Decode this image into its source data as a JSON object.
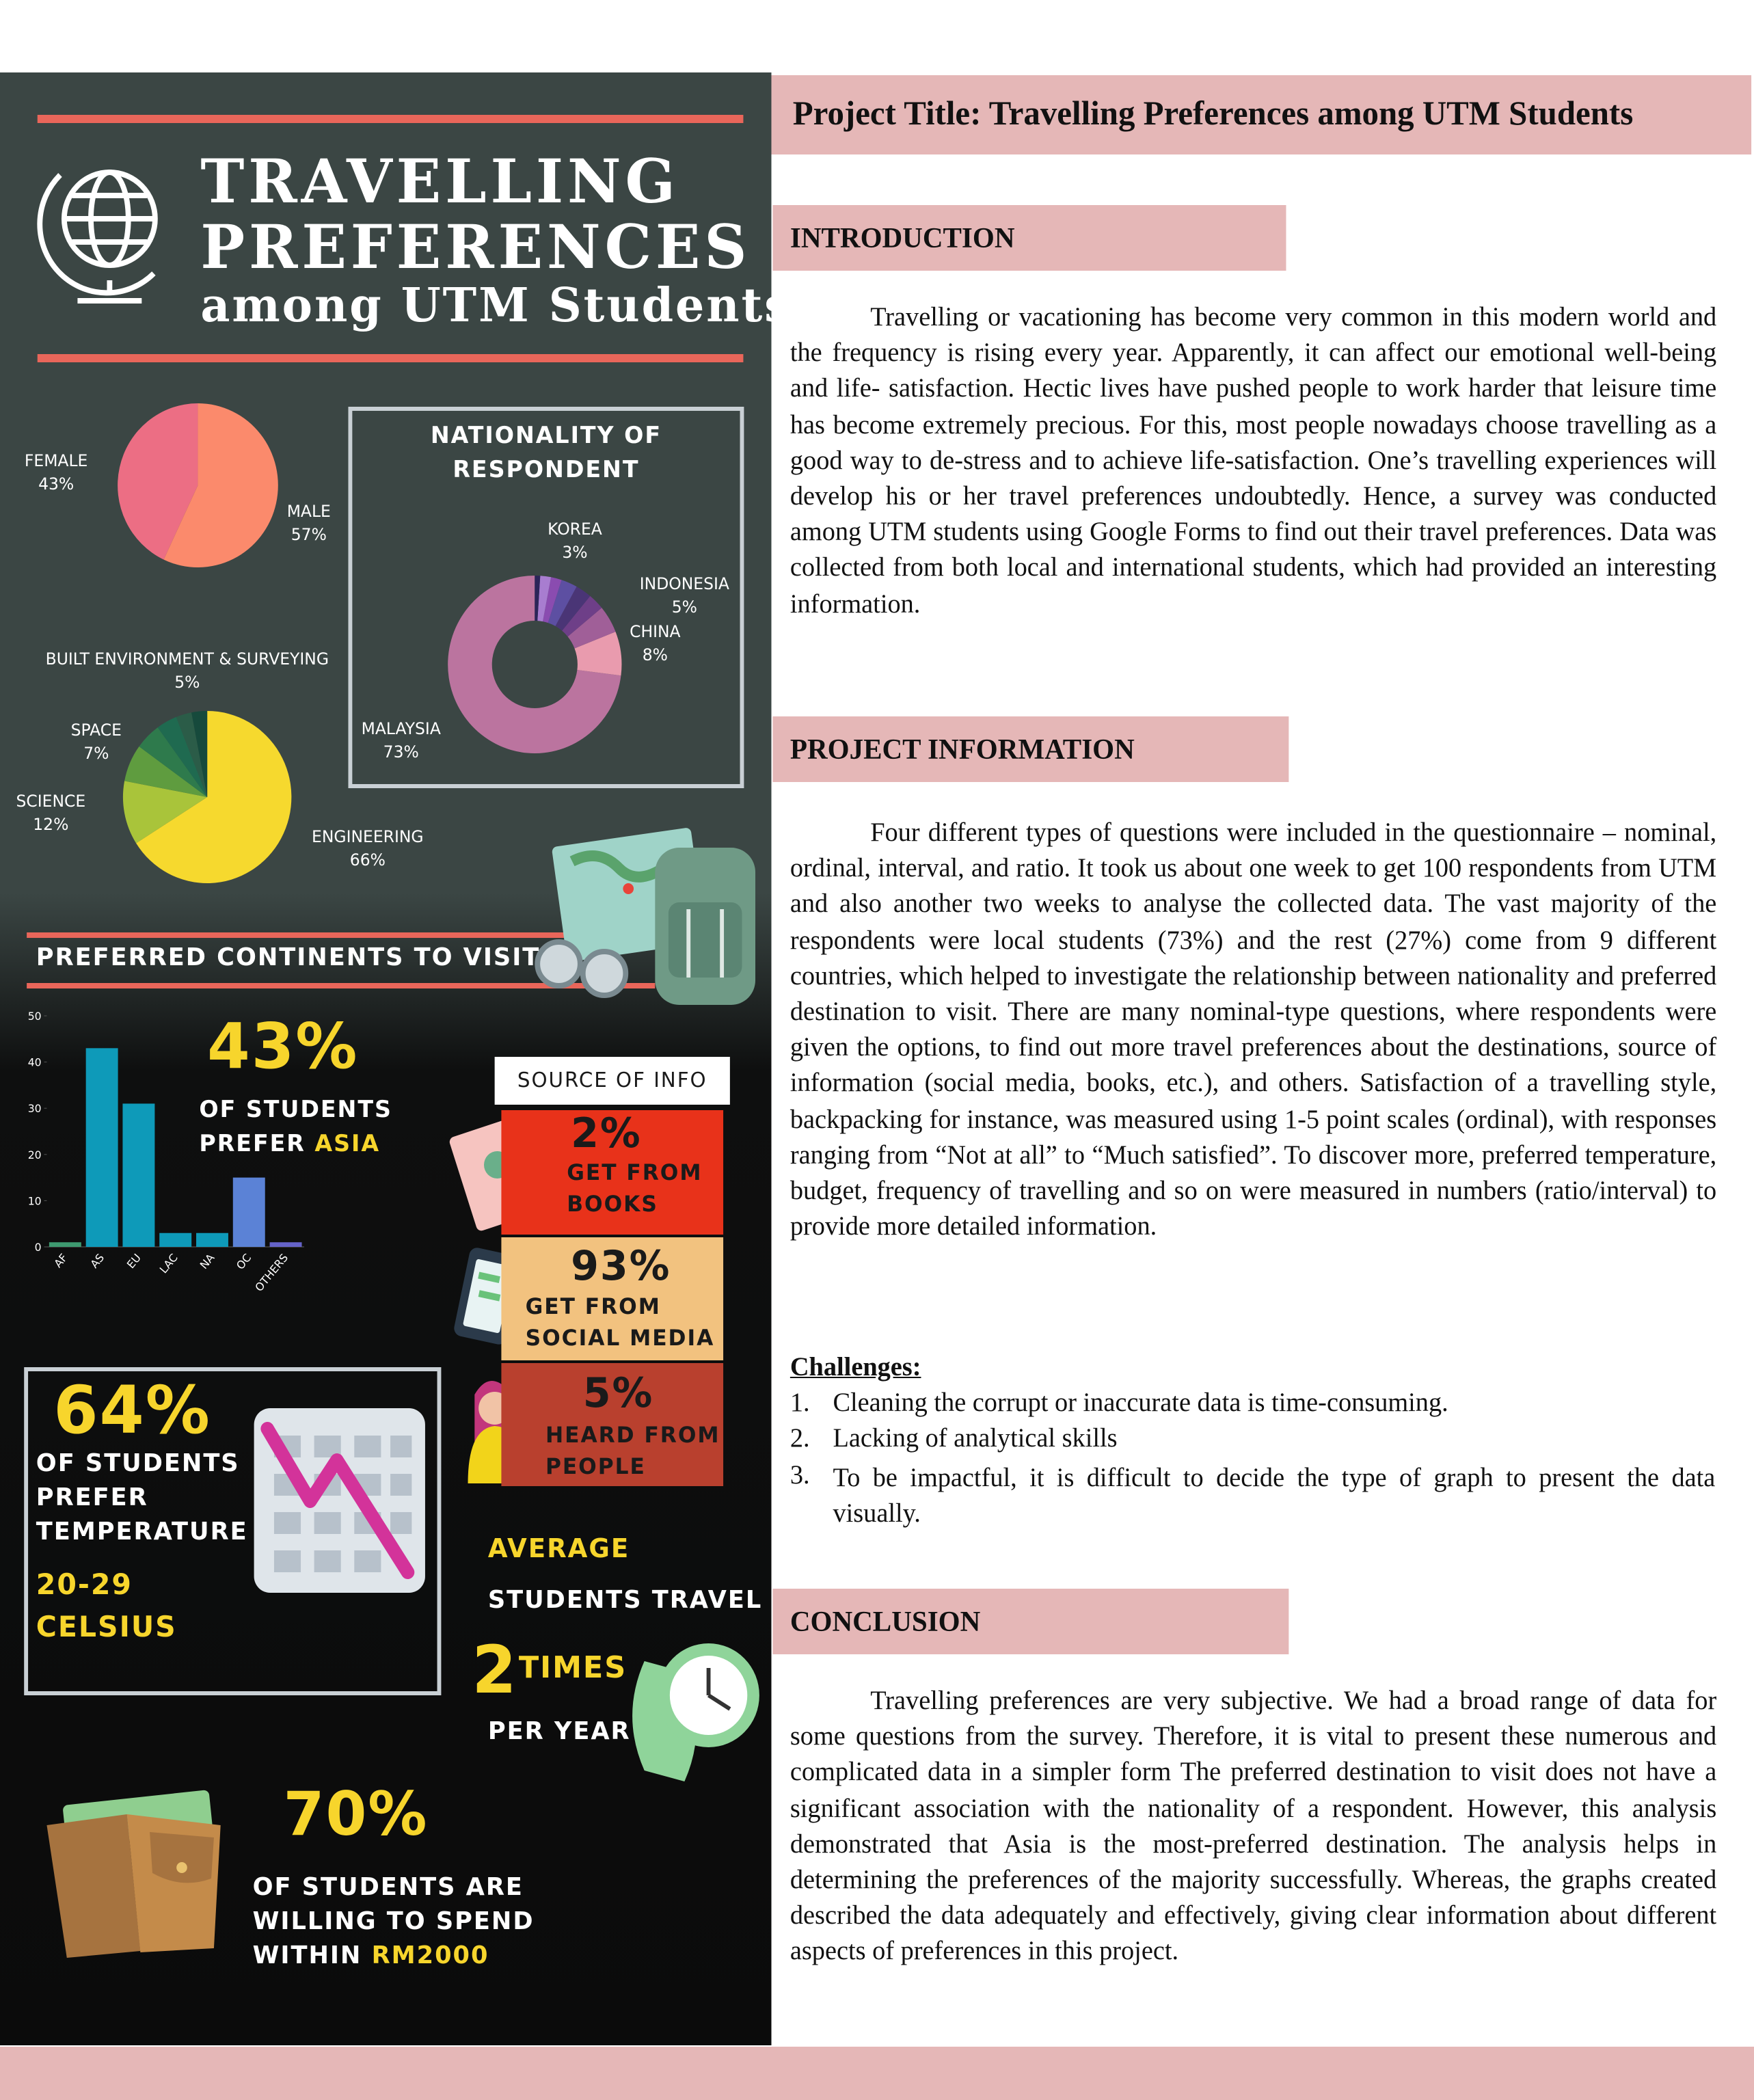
{
  "poster": {
    "title_line1": "TRAVELLING",
    "title_line2": "PREFERENCES",
    "title_line3": "among UTM Students"
  },
  "chart_data": [
    {
      "type": "pie",
      "categories": [
        "FEMALE",
        "MALE"
      ],
      "values": [
        43,
        57
      ],
      "value_labels": [
        "43%",
        "57%"
      ],
      "colors": [
        "#ec6e84",
        "#fb8a6c"
      ]
    },
    {
      "type": "pie",
      "title": "NATIONALITY OF RESPONDENT",
      "donut": true,
      "categories": [
        "MALAYSIA",
        "CHINA",
        "INDONESIA",
        "KOREA",
        null,
        null,
        null,
        null,
        null
      ],
      "values": [
        73,
        8,
        5,
        3,
        3,
        3,
        2,
        2,
        1
      ],
      "value_labels": [
        "73%",
        "8%",
        "5%",
        "3%",
        null,
        null,
        null,
        null,
        null
      ],
      "colors": [
        "#bb749f",
        "#e99bae",
        "#a05f98",
        "#6e3f88",
        "#4a3576",
        "#5d4fa2",
        "#8a4cb0",
        "#a87dd0",
        "#2c2559"
      ]
    },
    {
      "type": "pie",
      "categories": [
        "ENGINEERING",
        "SCIENCE",
        "SPACE",
        "BUILT ENVIRONMENT & SURVEYING",
        null,
        null,
        null
      ],
      "values": [
        66,
        12,
        7,
        5,
        4,
        3,
        3
      ],
      "value_labels": [
        "66%",
        "12%",
        "7%",
        "5%",
        null,
        null,
        null
      ],
      "colors": [
        "#f6d92e",
        "#a9c43a",
        "#5f9c3f",
        "#2e7a4c",
        "#1f6a50",
        "#2b5c48",
        "#164a3c"
      ]
    },
    {
      "type": "bar",
      "title": "PREFERRED CONTINENTS TO VISIT",
      "categories": [
        "AF",
        "AS",
        "EU",
        "LAC",
        "NA",
        "OC",
        "OTHERS"
      ],
      "values": [
        1,
        43,
        31,
        3,
        3,
        15,
        1
      ],
      "colors": [
        "#3e9a70",
        "#0e9ab9",
        "#0e9ab9",
        "#0e9ab9",
        "#0e9ab9",
        "#5b82d6",
        "#6563c9"
      ],
      "ylim": [
        0,
        50
      ],
      "yticks": [
        0,
        10,
        20,
        30,
        40,
        50
      ]
    }
  ],
  "asia_stat": {
    "value": "43%",
    "line1": "OF STUDENTS",
    "line2_prefix": "PREFER",
    "line2_highlight": "ASIA"
  },
  "source_of_info": {
    "title": "SOURCE OF INFO",
    "items": [
      {
        "value": "2%",
        "line1": "GET FROM",
        "line2": "BOOKS"
      },
      {
        "value": "93%",
        "line1": "GET FROM",
        "line2": "SOCIAL MEDIA"
      },
      {
        "value": "5%",
        "line1": "HEARD FROM",
        "line2": "PEOPLE"
      }
    ]
  },
  "temperature": {
    "value": "64%",
    "lines": [
      "OF STUDENTS",
      "PREFER",
      "TEMPERATURE"
    ],
    "range_lines": [
      "20-29",
      "CELSIUS"
    ]
  },
  "travel_frequency": {
    "label1": "AVERAGE",
    "label2": "STUDENTS TRAVEL",
    "number": "2",
    "unit": "TIMES",
    "label3": "PER YEAR"
  },
  "budget": {
    "value": "70%",
    "line1": "OF STUDENTS ARE",
    "line2": "WILLING TO SPEND",
    "line3_prefix": "WITHIN",
    "line3_highlight": "RM2000"
  },
  "document": {
    "title": "Project Title: Travelling Preferences among UTM Students",
    "introduction": {
      "heading": "INTRODUCTION",
      "text": "Travelling or vacationing has become very common in this modern world and the frequency is rising every year. Apparently, it can affect our emotional well-being and life- satisfaction. Hectic lives have pushed people to work harder that leisure time has become extremely precious. For this, most people nowadays choose travelling as a good way to de-stress and to achieve life-satisfaction. One’s travelling experiences will develop his or her travel preferences undoubtedly. Hence, a survey was conducted among UTM students using Google Forms to find out their travel preferences. Data was collected from both local and international students, which had provided an interesting information."
    },
    "project_information": {
      "heading": "PROJECT INFORMATION",
      "text": "Four different types of questions were included in the questionnaire – nominal, ordinal, interval, and ratio. It took us about one week to get 100 respondents from UTM and also another two weeks to analyse the collected data. The vast majority of the respondents were local students (73%) and the rest (27%) come from 9 different countries, which helped to investigate the relationship between nationality and preferred destination to visit. There are many nominal-type questions, where respondents were given the options, to find out more travel preferences about the destinations, source of information (social media, books, etc.), and others. Satisfaction of a travelling style, backpacking for instance, was measured using 1-5 point scales (ordinal), with responses ranging from “Not at all” to “Much satisfied”. To discover more, preferred temperature, budget, frequency of travelling and so on were measured in numbers (ratio/interval) to provide more detailed information."
    },
    "challenges": {
      "heading": "Challenges:",
      "items": [
        {
          "number": "1.",
          "text": "Cleaning the corrupt or inaccurate data is time-consuming."
        },
        {
          "number": "2.",
          "text": "Lacking of analytical skills"
        },
        {
          "number": "3.",
          "text": "To be impactful, it is difficult to decide the type of graph to present the data visually."
        }
      ]
    },
    "conclusion": {
      "heading": "CONCLUSION",
      "text": "Travelling preferences are very subjective. We had a broad range of data for some questions from the survey. Therefore, it is vital to present these numerous and complicated data in a simpler form The preferred destination to visit does not have a significant association with the nationality of a respondent. However, this analysis demonstrated that Asia is the most-preferred destination. The analysis helps in determining the preferences of the majority successfully. Whereas, the graphs created described the data adequately and effectively, giving clear information about different aspects of preferences in this project."
    }
  }
}
